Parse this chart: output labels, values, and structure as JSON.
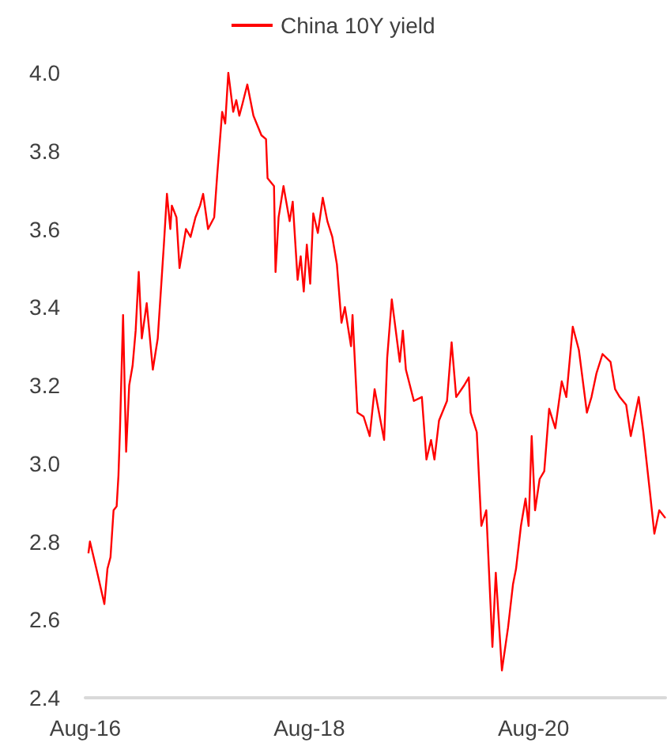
{
  "chart_data": {
    "type": "line",
    "legend": "top",
    "xlim": [
      "2016-08-01",
      "2021-10-05"
    ],
    "xticks": [
      {
        "value": "2016-08-01",
        "label": "Aug-16"
      },
      {
        "value": "2018-08-01",
        "label": "Aug-18"
      },
      {
        "value": "2020-08-01",
        "label": "Aug-20"
      }
    ],
    "ylim": [
      2.4,
      4.0
    ],
    "yticks": [
      2.4,
      2.6,
      2.8,
      {
        "value": 3.0,
        "label": "3.0"
      },
      3.2,
      3.4,
      3.6,
      3.8,
      {
        "value": 4.0,
        "label": "4.0"
      }
    ],
    "grid": false,
    "marker": "none",
    "line_style": "solid",
    "x": [
      "2016-08-11",
      "2016-08-16",
      "2016-09-06",
      "2016-10-02",
      "2016-10-12",
      "2016-10-22",
      "2016-11-01",
      "2016-11-11",
      "2016-11-17",
      "2016-11-22",
      "2016-12-02",
      "2016-12-07",
      "2016-12-12",
      "2016-12-22",
      "2017-01-02",
      "2017-01-12",
      "2017-01-22",
      "2017-02-01",
      "2017-02-17",
      "2017-03-09",
      "2017-03-25",
      "2017-04-09",
      "2017-04-14",
      "2017-04-24",
      "2017-05-05",
      "2017-05-10",
      "2017-05-25",
      "2017-06-04",
      "2017-06-25",
      "2017-07-10",
      "2017-07-26",
      "2017-08-10",
      "2017-08-20",
      "2017-09-05",
      "2017-09-25",
      "2017-10-05",
      "2017-10-21",
      "2017-10-31",
      "2017-11-10",
      "2017-11-26",
      "2017-12-06",
      "2017-12-16",
      "2017-12-26",
      "2018-01-11",
      "2018-01-31",
      "2018-02-26",
      "2018-03-13",
      "2018-03-18",
      "2018-04-08",
      "2018-04-13",
      "2018-04-23",
      "2018-05-09",
      "2018-05-29",
      "2018-06-08",
      "2018-06-24",
      "2018-07-04",
      "2018-07-14",
      "2018-07-24",
      "2018-08-04",
      "2018-08-14",
      "2018-08-29",
      "2018-09-14",
      "2018-09-29",
      "2018-10-15",
      "2018-10-30",
      "2018-11-14",
      "2018-11-25",
      "2018-12-15",
      "2018-12-20",
      "2019-01-05",
      "2019-01-25",
      "2019-02-14",
      "2019-03-02",
      "2019-04-02",
      "2019-04-12",
      "2019-04-27",
      "2019-05-23",
      "2019-06-02",
      "2019-06-12",
      "2019-07-08",
      "2019-08-03",
      "2019-08-18",
      "2019-09-02",
      "2019-09-13",
      "2019-09-28",
      "2019-10-24",
      "2019-11-08",
      "2019-11-23",
      "2019-12-19",
      "2020-01-03",
      "2020-01-09",
      "2020-01-29",
      "2020-02-13",
      "2020-02-29",
      "2020-03-20",
      "2020-03-31",
      "2020-04-20",
      "2020-05-10",
      "2020-05-26",
      "2020-06-05",
      "2020-06-21",
      "2020-07-06",
      "2020-07-16",
      "2020-07-26",
      "2020-08-06",
      "2020-08-21",
      "2020-09-05",
      "2020-09-21",
      "2020-10-11",
      "2020-11-01",
      "2020-11-16",
      "2020-12-07",
      "2020-12-27",
      "2021-01-22",
      "2021-02-06",
      "2021-02-22",
      "2021-03-14",
      "2021-04-09",
      "2021-04-24",
      "2021-05-09",
      "2021-05-30",
      "2021-06-14",
      "2021-07-10",
      "2021-07-25",
      "2021-08-15",
      "2021-08-30",
      "2021-09-15",
      "2021-10-05"
    ],
    "series": [
      {
        "name": "China 10Y yield",
        "color": "#ff0000",
        "values": [
          2.77,
          2.8,
          2.73,
          2.64,
          2.73,
          2.76,
          2.88,
          2.89,
          2.97,
          3.09,
          3.38,
          3.2,
          3.03,
          3.2,
          3.25,
          3.34,
          3.49,
          3.32,
          3.41,
          3.24,
          3.32,
          3.5,
          3.56,
          3.69,
          3.6,
          3.66,
          3.63,
          3.5,
          3.6,
          3.58,
          3.63,
          3.66,
          3.69,
          3.6,
          3.63,
          3.74,
          3.9,
          3.87,
          4.0,
          3.9,
          3.93,
          3.89,
          3.92,
          3.97,
          3.89,
          3.84,
          3.83,
          3.73,
          3.71,
          3.49,
          3.63,
          3.71,
          3.62,
          3.67,
          3.47,
          3.53,
          3.44,
          3.56,
          3.46,
          3.64,
          3.59,
          3.68,
          3.62,
          3.58,
          3.51,
          3.36,
          3.4,
          3.3,
          3.38,
          3.13,
          3.12,
          3.07,
          3.19,
          3.06,
          3.27,
          3.42,
          3.26,
          3.34,
          3.24,
          3.16,
          3.17,
          3.01,
          3.06,
          3.01,
          3.11,
          3.16,
          3.31,
          3.17,
          3.2,
          3.22,
          3.13,
          3.08,
          2.84,
          2.88,
          2.53,
          2.72,
          2.47,
          2.58,
          2.69,
          2.73,
          2.84,
          2.91,
          2.84,
          3.07,
          2.88,
          2.96,
          2.98,
          3.14,
          3.09,
          3.21,
          3.17,
          3.35,
          3.29,
          3.13,
          3.17,
          3.23,
          3.28,
          3.26,
          3.19,
          3.17,
          3.15,
          3.07,
          3.17,
          3.08,
          2.93,
          2.82,
          2.88,
          2.86
        ]
      }
    ]
  }
}
